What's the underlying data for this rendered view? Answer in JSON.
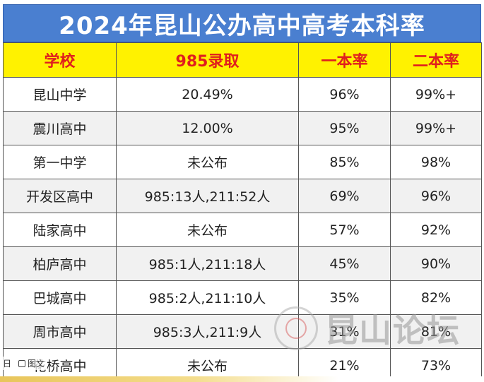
{
  "title": "2024年昆山公办高中高考本科率",
  "table": {
    "headers": [
      "学校",
      "985录取",
      "一本率",
      "二本率"
    ],
    "rows": [
      [
        "昆山中学",
        "20.49%",
        "96%",
        "99%+"
      ],
      [
        "震川高中",
        "12.00%",
        "95%",
        "99%+"
      ],
      [
        "第一中学",
        "未公布",
        "85%",
        "98%"
      ],
      [
        "开发区高中",
        "985:13人,211:52人",
        "69%",
        "96%"
      ],
      [
        "陆家高中",
        "未公布",
        "57%",
        "92%"
      ],
      [
        "柏庐高中",
        "985:1人,211:18人",
        "45%",
        "90%"
      ],
      [
        "巴城高中",
        "985:2人,211:10人",
        "35%",
        "82%"
      ],
      [
        "周市高中",
        "985:3人,211:9人",
        "31%",
        "81%"
      ],
      [
        "花桥高中",
        "未公布",
        "21%",
        "73%"
      ]
    ]
  },
  "watermark": {
    "text": "昆山论坛",
    "icon": "forum-logo-icon"
  },
  "overlay": {
    "left_label": "日",
    "image_label": "图文"
  },
  "colors": {
    "title_bg": "#4a7fd0",
    "header_bg": "#fff200",
    "header_text": "#e01e1e"
  }
}
